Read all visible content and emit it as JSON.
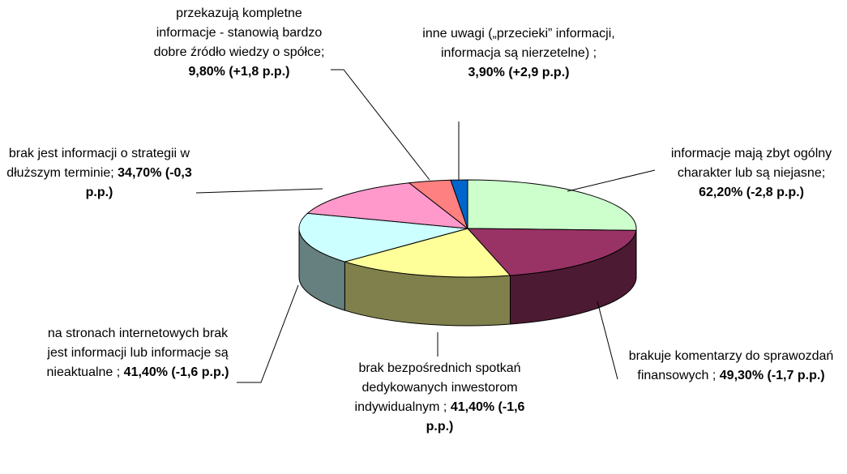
{
  "chart_data": {
    "type": "pie3d",
    "categories": [
      "informacje mają zbyt ogólny charakter lub są niejasne;",
      "brakuje komentarzy do sprawozdań finansowych ;",
      "brak bezpośrednich spotkań dedykowanych inwestorom indywidualnym ;",
      "na stronach internetowych brak jest informacji lub informacje są nieaktualne ;",
      "brak jest informacji o strategii w dłuższym terminie;",
      "przekazują kompletne informacje - stanowią bardzo dobre źródło wiedzy o spółce;",
      "inne uwagi („przecieki” informacji, informacja są nierzetelne) ;"
    ],
    "values": [
      62.2,
      49.3,
      41.4,
      41.4,
      34.7,
      9.8,
      3.9
    ],
    "value_labels": [
      "62,20%",
      "49,30%",
      "41,40%",
      "41,40%",
      "34,70%",
      "9,80%",
      "3,90%"
    ],
    "change_labels": [
      "(-2,8 p.p.)",
      "(-1,7 p.p.)",
      "(-1,6 p.p.)",
      "(-1,6 p.p.)",
      "(-0,3 p.p.)",
      "(+1,8 p.p.)",
      "(+2,9 p.p.)"
    ],
    "colors": [
      "#ccffcc",
      "#993366",
      "#ffff99",
      "#ccffff",
      "#ff99cc",
      "#ff8080",
      "#0066cc"
    ]
  }
}
